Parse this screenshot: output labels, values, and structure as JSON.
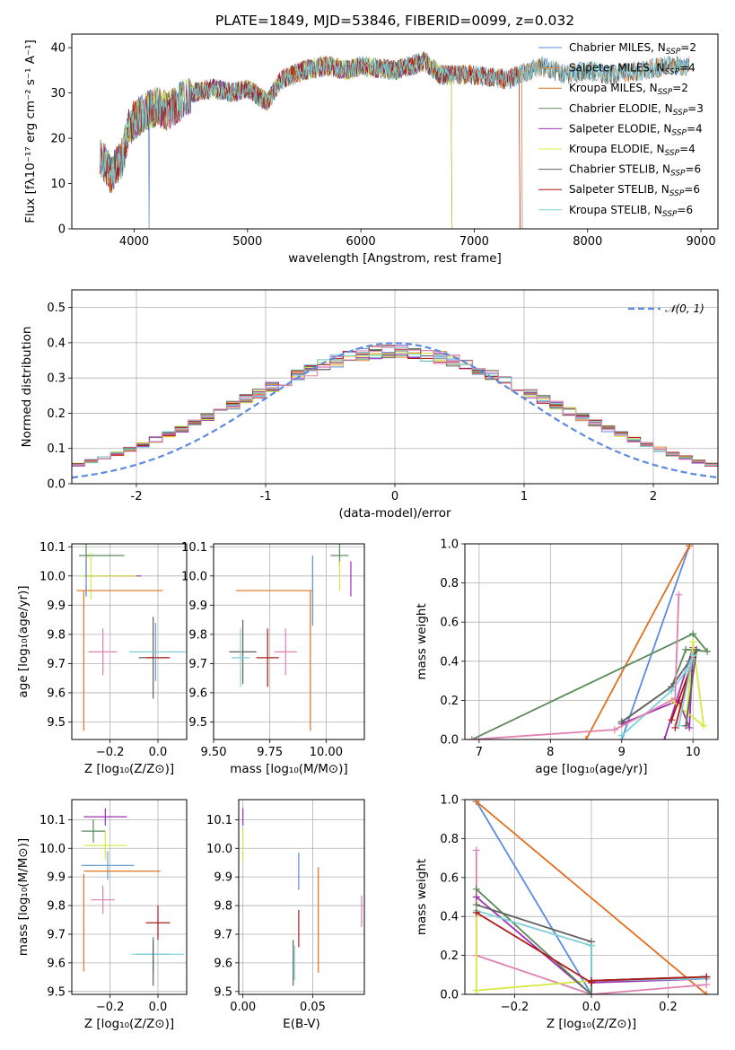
{
  "figure": {
    "title": "PLATE=1849, MJD=53846, FIBERID=0099, z=0.032"
  },
  "colors": [
    "#5b8ae0",
    "#e08c3a",
    "#e07020",
    "#5a8a5a",
    "#9b30b0",
    "#d8e840",
    "#606060",
    "#b01818",
    "#7dd0d8",
    "#e080b0",
    "#6aa0d0",
    "#3aa0a0"
  ],
  "chart_data": [
    {
      "id": "spectrum",
      "type": "line",
      "title": "PLATE=1849, MJD=53846, FIBERID=0099, z=0.032",
      "xlabel": "wavelength [Angstrom, rest frame]",
      "ylabel": "Flux [fλ10⁻¹⁷ erg cm⁻² s⁻¹ A⁻¹]",
      "xlim": [
        3450,
        9150
      ],
      "ylim": [
        0,
        43
      ],
      "xticks": [
        4000,
        5000,
        6000,
        7000,
        8000,
        9000
      ],
      "yticks": [
        0,
        10,
        20,
        30,
        40
      ],
      "grid": false,
      "legend_position": "top-right",
      "continuum": [
        [
          3700,
          16
        ],
        [
          3800,
          12
        ],
        [
          3900,
          16
        ],
        [
          3950,
          22
        ],
        [
          4000,
          24
        ],
        [
          4100,
          26
        ],
        [
          4200,
          27
        ],
        [
          4300,
          26
        ],
        [
          4400,
          28
        ],
        [
          4500,
          30
        ],
        [
          4700,
          31
        ],
        [
          4861,
          30
        ],
        [
          5000,
          31
        ],
        [
          5175,
          28
        ],
        [
          5300,
          33
        ],
        [
          5500,
          35
        ],
        [
          5700,
          36
        ],
        [
          5890,
          35
        ],
        [
          6000,
          36
        ],
        [
          6300,
          35
        ],
        [
          6563,
          37
        ],
        [
          6700,
          34
        ],
        [
          7000,
          34
        ],
        [
          7300,
          33
        ],
        [
          7600,
          36
        ],
        [
          7800,
          34
        ],
        [
          8000,
          35
        ],
        [
          8200,
          34
        ],
        [
          8500,
          35
        ],
        [
          8700,
          36
        ],
        [
          8900,
          36
        ]
      ],
      "series": [
        {
          "name": "Chabrier MILES, N_SSP=2",
          "color": "#5b8ae0",
          "end": 8900,
          "drop": 4130
        },
        {
          "name": "Salpeter MILES, N_SSP=4",
          "color": "#e08c3a",
          "end": 8900
        },
        {
          "name": "Kroupa MILES, N_SSP=2",
          "color": "#e07020",
          "end": 7420
        },
        {
          "name": "Chabrier ELODIE, N_SSP=3",
          "color": "#5a8a5a",
          "end": 6800
        },
        {
          "name": "Salpeter ELODIE, N_SSP=4",
          "color": "#9b30b0",
          "end": 6800
        },
        {
          "name": "Kroupa ELODIE, N_SSP=4",
          "color": "#d8e840",
          "end": 6800
        },
        {
          "name": "Chabrier STELIB, N_SSP=6",
          "color": "#606060",
          "end": 8900
        },
        {
          "name": "Salpeter STELIB, N_SSP=6",
          "color": "#b01818",
          "end": 7400
        },
        {
          "name": "Kroupa STELIB, N_SSP=6",
          "color": "#7dd0d8",
          "end": 8900
        }
      ]
    },
    {
      "id": "residuals",
      "type": "line",
      "xlabel": "(data-model)/error",
      "ylabel": "Normed distribution",
      "xlim": [
        -2.5,
        2.5
      ],
      "ylim": [
        0,
        0.55
      ],
      "xticks": [
        -2,
        -1,
        0,
        1,
        2
      ],
      "yticks": [
        0.0,
        0.1,
        0.2,
        0.3,
        0.4,
        0.5
      ],
      "grid": true,
      "legend_position": "top-right",
      "legend": "𝒩(0, 1)",
      "bin_width": 0.1,
      "bin_start": -2.5,
      "base": [
        0.018,
        0.022,
        0.025,
        0.03,
        0.036,
        0.043,
        0.05,
        0.058,
        0.067,
        0.077,
        0.089,
        0.103,
        0.118,
        0.135,
        0.152,
        0.17,
        0.19,
        0.213,
        0.236,
        0.26,
        0.283,
        0.306,
        0.328,
        0.349,
        0.368,
        0.382,
        0.394,
        0.403,
        0.409,
        0.412,
        0.411,
        0.407,
        0.4,
        0.39,
        0.377,
        0.362,
        0.345,
        0.327,
        0.307,
        0.287,
        0.266,
        0.244,
        0.222,
        0.2,
        0.179,
        0.159,
        0.14,
        0.122,
        0.105,
        0.09
      ],
      "histograms": [
        {
          "color": "#5b8ae0",
          "seed": 1
        },
        {
          "color": "#e08c3a",
          "seed": 2
        },
        {
          "color": "#5a8a5a",
          "seed": 3
        },
        {
          "color": "#9b30b0",
          "seed": 4
        },
        {
          "color": "#d8e840",
          "seed": 5
        },
        {
          "color": "#606060",
          "seed": 6
        },
        {
          "color": "#b01818",
          "seed": 7
        },
        {
          "color": "#7dd0d8",
          "seed": 8
        },
        {
          "color": "#e080b0",
          "seed": 9
        }
      ]
    },
    {
      "id": "age_vs_Z",
      "type": "scatter",
      "xlabel": "Z [log₁₀(Z/Z⊙)]",
      "ylabel": "age  [log₁₀(age/yr)]",
      "xlim": [
        -0.36,
        0.12
      ],
      "ylim": [
        9.44,
        10.11
      ],
      "xticks": [
        -0.2,
        0.0
      ],
      "xticklabels": [
        "−0.2",
        "0.0"
      ],
      "yticks": [
        9.5,
        9.6,
        9.7,
        9.8,
        9.9,
        10.0,
        10.1
      ],
      "grid": true,
      "points": [
        {
          "x": -0.3,
          "y": 10.07,
          "xe": 0.03,
          "ye": 0.07,
          "color": "#5a8a5a"
        },
        {
          "x": -0.22,
          "y": 10.07,
          "xe": 0.08,
          "ye": 0.0,
          "color": "#5a8a5a"
        },
        {
          "x": -0.19,
          "y": 10.0,
          "xe": 0.12,
          "ye": 0.0,
          "color": "#9b30b0"
        },
        {
          "x": -0.28,
          "y": 10.0,
          "xe": 0.04,
          "ye": 0.08,
          "color": "#d8e840"
        },
        {
          "x": -0.17,
          "y": 10.0,
          "xe": 0.08,
          "ye": 0.0,
          "color": "#d8e840"
        },
        {
          "x": -0.3,
          "y": 9.99,
          "xe": 0.0,
          "ye": 0.06,
          "color": "#5b8ae0"
        },
        {
          "x": -0.3,
          "y": 9.95,
          "xe": 0.0,
          "ye": 0.02,
          "color": "#5b8ae0"
        },
        {
          "x": -0.16,
          "y": 9.95,
          "xe": 0.18,
          "ye": 0.0,
          "color": "#e07020"
        },
        {
          "x": -0.31,
          "y": 9.71,
          "xe": 0.0,
          "ye": 0.24,
          "color": "#e07020"
        },
        {
          "x": -0.23,
          "y": 9.74,
          "xe": 0.06,
          "ye": 0.08,
          "color": "#e080b0"
        },
        {
          "x": -0.02,
          "y": 9.72,
          "xe": 0.06,
          "ye": 0.14,
          "color": "#606060"
        },
        {
          "x": 0.0,
          "y": 9.74,
          "xe": 0.12,
          "ye": 0.0,
          "color": "#7dd0d8"
        },
        {
          "x": 0.0,
          "y": 9.72,
          "xe": 0.05,
          "ye": 0.0,
          "color": "#b01818"
        },
        {
          "x": -0.01,
          "y": 9.74,
          "xe": 0.0,
          "ye": 0.1,
          "color": "#6aa0d0"
        }
      ]
    },
    {
      "id": "age_vs_mass",
      "type": "scatter",
      "xlabel": "mass [log₁₀(M/M⊙)]",
      "xlim": [
        9.5,
        10.17
      ],
      "ylim": [
        9.44,
        10.11
      ],
      "xticks": [
        9.5,
        9.75,
        10.0
      ],
      "xticklabels": [
        "9.50",
        "9.75",
        "10.00"
      ],
      "yticks": [
        9.5,
        9.6,
        9.7,
        9.8,
        9.9,
        10.0,
        10.1
      ],
      "grid": true,
      "points": [
        {
          "x": 10.06,
          "y": 10.07,
          "xe": 0.04,
          "ye": 0.04,
          "color": "#5a8a5a"
        },
        {
          "x": 10.11,
          "y": 9.99,
          "xe": 0.0,
          "ye": 0.06,
          "color": "#9b30b0"
        },
        {
          "x": 10.06,
          "y": 10.0,
          "xe": 0.0,
          "ye": 0.05,
          "color": "#d8e840"
        },
        {
          "x": 9.94,
          "y": 9.95,
          "xe": 0.0,
          "ye": 0.12,
          "color": "#5b8ae0"
        },
        {
          "x": 9.77,
          "y": 9.95,
          "xe": 0.17,
          "ye": 0.0,
          "color": "#e07020"
        },
        {
          "x": 9.93,
          "y": 9.71,
          "xe": 0.0,
          "ye": 0.24,
          "color": "#e07020"
        },
        {
          "x": 9.82,
          "y": 9.74,
          "xe": 0.05,
          "ye": 0.08,
          "color": "#e080b0"
        },
        {
          "x": 9.63,
          "y": 9.74,
          "xe": 0.06,
          "ye": 0.11,
          "color": "#606060"
        },
        {
          "x": 9.62,
          "y": 9.72,
          "xe": 0.04,
          "ye": 0.1,
          "color": "#7dd0d8"
        },
        {
          "x": 9.74,
          "y": 9.72,
          "xe": 0.05,
          "ye": 0.1,
          "color": "#b01818"
        }
      ]
    },
    {
      "id": "weight_vs_age",
      "type": "line",
      "xlabel": "age  [log₁₀(age/yr)]",
      "ylabel": "mass weight",
      "xlim": [
        6.8,
        10.35
      ],
      "ylim": [
        0,
        1.0
      ],
      "xticks": [
        7,
        8,
        9,
        10
      ],
      "yticks": [
        0.0,
        0.2,
        0.4,
        0.6,
        0.8,
        1.0
      ],
      "grid": true,
      "series": [
        {
          "color": "#5b8ae0",
          "x": [
            9.0,
            9.95
          ],
          "y": [
            0.0,
            0.99
          ]
        },
        {
          "color": "#e07020",
          "x": [
            8.5,
            9.95
          ],
          "y": [
            0.0,
            0.99
          ]
        },
        {
          "color": "#5a8a5a",
          "x": [
            6.9,
            10.0,
            10.2,
            9.9,
            9.7,
            9.0
          ],
          "y": [
            0.0,
            0.54,
            0.45,
            0.46,
            0.27,
            0.09
          ]
        },
        {
          "color": "#9b30b0",
          "x": [
            9.6,
            10.0,
            9.95,
            9.8,
            9.0
          ],
          "y": [
            0.0,
            0.47,
            0.06,
            0.2,
            0.08
          ]
        },
        {
          "color": "#d8e840",
          "x": [
            9.9,
            10.0,
            10.15,
            9.7
          ],
          "y": [
            0.07,
            0.5,
            0.07,
            0.2
          ]
        },
        {
          "color": "#606060",
          "x": [
            9.9,
            10.05,
            9.95,
            9.7,
            9.0
          ],
          "y": [
            0.07,
            0.46,
            0.4,
            0.27,
            0.09
          ]
        },
        {
          "color": "#b01818",
          "x": [
            9.75,
            10.0,
            9.95,
            9.7
          ],
          "y": [
            0.06,
            0.42,
            0.35,
            0.1
          ]
        },
        {
          "color": "#7dd0d8",
          "x": [
            9.8,
            10.0,
            9.9,
            9.7,
            9.0
          ],
          "y": [
            0.07,
            0.43,
            0.35,
            0.25,
            0.02
          ]
        },
        {
          "color": "#e080b0",
          "x": [
            6.9,
            8.9,
            9.75,
            9.8
          ],
          "y": [
            0.0,
            0.05,
            0.21,
            0.74
          ]
        }
      ]
    },
    {
      "id": "mass_vs_Z",
      "type": "scatter",
      "xlabel": "Z [log₁₀(Z/Z⊙)]",
      "ylabel": "mass [log₁₀(M/M⊙)]",
      "xlim": [
        -0.36,
        0.12
      ],
      "ylim": [
        9.49,
        10.17
      ],
      "xticks": [
        -0.2,
        0.0
      ],
      "xticklabels": [
        "−0.2",
        "0.0"
      ],
      "yticks": [
        9.5,
        9.6,
        9.7,
        9.8,
        9.9,
        10.0,
        10.1
      ],
      "grid": true,
      "points": [
        {
          "x": -0.22,
          "y": 10.11,
          "xe": 0.09,
          "ye": 0.03,
          "color": "#9b30b0"
        },
        {
          "x": -0.27,
          "y": 10.06,
          "xe": 0.05,
          "ye": 0.04,
          "color": "#5a8a5a"
        },
        {
          "x": -0.22,
          "y": 10.01,
          "xe": 0.09,
          "ye": 0.05,
          "color": "#d8e840"
        },
        {
          "x": -0.21,
          "y": 9.94,
          "xe": 0.11,
          "ye": 0.05,
          "color": "#6aa0d0"
        },
        {
          "x": -0.15,
          "y": 9.92,
          "xe": 0.16,
          "ye": 0.0,
          "color": "#e07020"
        },
        {
          "x": -0.31,
          "y": 9.74,
          "xe": 0.0,
          "ye": 0.17,
          "color": "#e07020"
        },
        {
          "x": -0.23,
          "y": 9.82,
          "xe": 0.05,
          "ye": 0.05,
          "color": "#e080b0"
        },
        {
          "x": 0.0,
          "y": 9.74,
          "xe": 0.05,
          "ye": 0.06,
          "color": "#b01818"
        },
        {
          "x": -0.02,
          "y": 9.63,
          "xe": 0.07,
          "ye": 0.06,
          "color": "#3aa0a0"
        },
        {
          "x": 0.0,
          "y": 9.63,
          "xe": 0.11,
          "ye": 0.0,
          "color": "#7dd0d8"
        },
        {
          "x": -0.02,
          "y": 9.6,
          "xe": 0.0,
          "ye": 0.08,
          "color": "#606060"
        }
      ]
    },
    {
      "id": "mass_vs_ebv",
      "type": "scatter",
      "xlabel": "E(B-V)",
      "xlim": [
        -0.003,
        0.087
      ],
      "ylim": [
        9.49,
        10.17
      ],
      "xticks": [
        0.0,
        0.05
      ],
      "xticklabels": [
        "0.00",
        "0.05"
      ],
      "yticks": [
        9.5,
        9.6,
        9.7,
        9.8,
        9.9,
        10.0,
        10.1
      ],
      "grid": true,
      "points": [
        {
          "x": 0.0,
          "y": 10.11,
          "xe": 0.0,
          "ye": 0.03,
          "color": "#9b30b0"
        },
        {
          "x": 0.0,
          "y": 10.01,
          "xe": 0.0,
          "ye": 0.06,
          "color": "#d8e840"
        },
        {
          "x": 0.04,
          "y": 9.92,
          "xe": 0.0,
          "ye": 0.065,
          "color": "#5b8ae0"
        },
        {
          "x": 0.054,
          "y": 9.75,
          "xe": 0.0,
          "ye": 0.185,
          "color": "#e07020"
        },
        {
          "x": 0.085,
          "y": 9.78,
          "xe": 0.0,
          "ye": 0.055,
          "color": "#e080b0"
        },
        {
          "x": 0.04,
          "y": 9.72,
          "xe": 0.0,
          "ye": 0.065,
          "color": "#b01818"
        },
        {
          "x": 0.036,
          "y": 9.6,
          "xe": 0.0,
          "ye": 0.08,
          "color": "#606060"
        },
        {
          "x": 0.037,
          "y": 9.6,
          "xe": 0.0,
          "ye": 0.06,
          "color": "#7dd0d8"
        }
      ]
    },
    {
      "id": "weight_vs_Z",
      "type": "line",
      "xlabel": "Z [log₁₀(Z/Z⊙)]",
      "ylabel": "mass weight",
      "xlim": [
        -0.33,
        0.33
      ],
      "ylim": [
        0,
        1.0
      ],
      "xticks": [
        -0.2,
        0.0,
        0.2
      ],
      "xticklabels": [
        "−0.2",
        "0.0",
        "0.2"
      ],
      "yticks": [
        0.0,
        0.2,
        0.4,
        0.6,
        0.8,
        1.0
      ],
      "grid": true,
      "series": [
        {
          "color": "#5b8ae0",
          "x": [
            -0.3,
            0.0
          ],
          "y": [
            0.99,
            0.0
          ]
        },
        {
          "color": "#e07020",
          "x": [
            -0.3,
            0.3
          ],
          "y": [
            0.99,
            0.0
          ]
        },
        {
          "color": "#e080b0",
          "x": [
            -0.3,
            -0.3,
            0.0,
            0.3
          ],
          "y": [
            0.74,
            0.2,
            0.0,
            0.05
          ]
        },
        {
          "color": "#d8e840",
          "x": [
            -0.3,
            -0.3,
            0.0,
            0.0
          ],
          "y": [
            0.5,
            0.02,
            0.07,
            0.0
          ]
        },
        {
          "color": "#9b30b0",
          "x": [
            -0.3,
            0.0,
            0.0,
            0.3
          ],
          "y": [
            0.5,
            0.0,
            0.06,
            0.08
          ]
        },
        {
          "color": "#5a8a5a",
          "x": [
            -0.3,
            0.0,
            0.0,
            0.3
          ],
          "y": [
            0.54,
            0.0,
            0.07,
            0.09
          ]
        },
        {
          "color": "#606060",
          "x": [
            -0.3,
            0.0,
            0.0,
            0.3
          ],
          "y": [
            0.46,
            0.27,
            0.07,
            0.09
          ]
        },
        {
          "color": "#7dd0d8",
          "x": [
            -0.3,
            0.0,
            0.0,
            0.3
          ],
          "y": [
            0.43,
            0.25,
            0.07,
            0.08
          ]
        },
        {
          "color": "#b01818",
          "x": [
            -0.3,
            0.0,
            0.0,
            0.3
          ],
          "y": [
            0.42,
            0.06,
            0.07,
            0.09
          ]
        }
      ]
    }
  ]
}
